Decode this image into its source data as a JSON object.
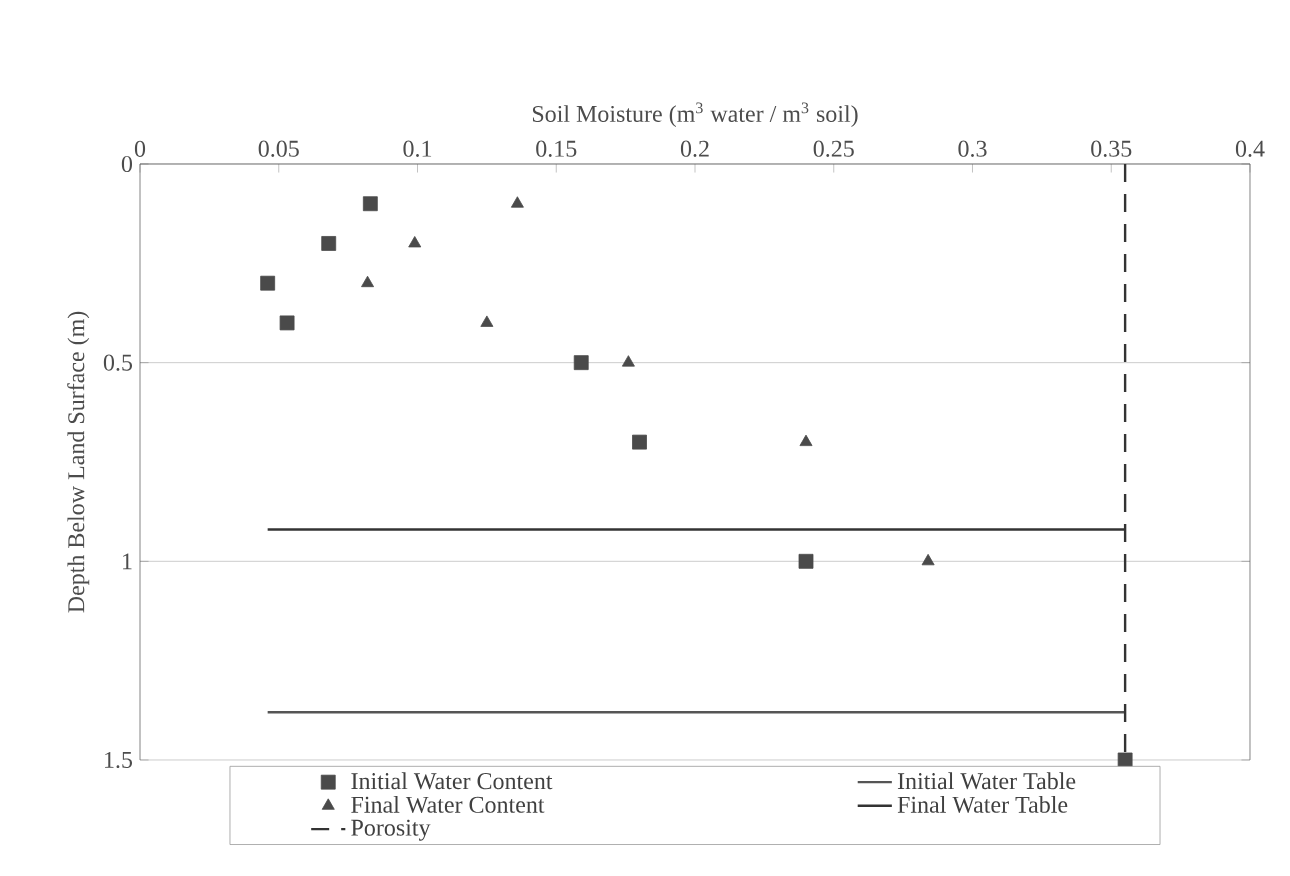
{
  "chart_data": {
    "type": "scatter",
    "xlabel": "Soil Moisture (m$^{3}$ water / m$^{3}$ soil)",
    "ylabel": "Depth Below Land Surface (m)",
    "xlim": [
      0,
      0.4
    ],
    "xticks": [
      0,
      0.05,
      0.1,
      0.15,
      0.2,
      0.25,
      0.3,
      0.35,
      0.4
    ],
    "ylim": [
      1.5,
      0
    ],
    "yticks": [
      0,
      0.5,
      1,
      1.5
    ],
    "grid": "y",
    "legend": "bottom",
    "series": [
      {
        "name": "Initial Water Content",
        "marker": "square",
        "color": "#4a4a4a",
        "x": [
          0.083,
          0.068,
          0.046,
          0.053,
          0.159,
          0.18,
          0.24,
          0.355
        ],
        "values": [
          0.1,
          0.2,
          0.3,
          0.4,
          0.5,
          0.7,
          1.0,
          1.5
        ]
      },
      {
        "name": "Initial Water Table",
        "type": "line",
        "line_style": "solid",
        "color": "#555555",
        "x": [
          0.046,
          0.355
        ],
        "values": [
          1.38,
          1.38
        ]
      },
      {
        "name": "Final Water Content",
        "marker": "triangle",
        "color": "#4a4a4a",
        "x": [
          0.136,
          0.099,
          0.082,
          0.125,
          0.176,
          0.24,
          0.284
        ],
        "values": [
          0.1,
          0.2,
          0.3,
          0.4,
          0.5,
          0.7,
          1.0
        ]
      },
      {
        "name": "Final Water Table",
        "type": "line",
        "line_style": "solid",
        "color": "#333333",
        "x": [
          0.046,
          0.355
        ],
        "values": [
          0.92,
          0.92
        ]
      },
      {
        "name": "Porosity",
        "type": "line",
        "line_style": "dashed",
        "color": "#333333",
        "x": [
          0.355,
          0.355
        ],
        "values": [
          0,
          1.5
        ]
      }
    ]
  }
}
